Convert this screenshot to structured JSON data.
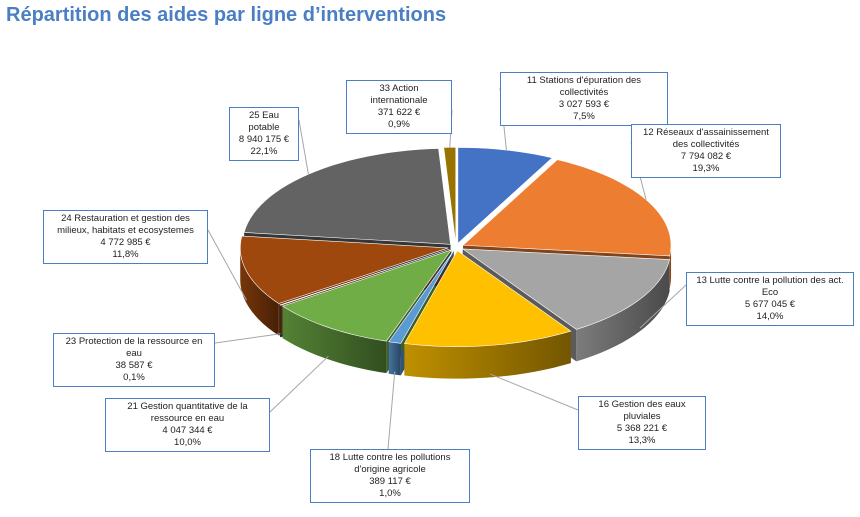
{
  "page": {
    "title": "Répartition des aides par ligne d’interventions"
  },
  "chart_data": {
    "type": "pie",
    "title": "Répartition des aides par ligne d’interventions",
    "slices": [
      {
        "name": "11 Stations d'épuration des collectivités",
        "value": 3027593,
        "value_label": "3 027 593 €",
        "percent": 7.5,
        "percent_label": "7,5%",
        "color": "#4472c4"
      },
      {
        "name": "12 Réseaux d'assainissement des collectivités",
        "value": 7794082,
        "value_label": "7 794 082 €",
        "percent": 19.3,
        "percent_label": "19,3%",
        "color": "#ed7d31"
      },
      {
        "name": "13 Lutte contre la pollution des act. Eco",
        "value": 5677045,
        "value_label": "5 677 045 €",
        "percent": 14.0,
        "percent_label": "14,0%",
        "color": "#a5a5a5"
      },
      {
        "name": "16 Gestion des eaux pluviales",
        "value": 5368221,
        "value_label": "5 368 221 €",
        "percent": 13.3,
        "percent_label": "13,3%",
        "color": "#ffc000"
      },
      {
        "name": "18 Lutte contre les pollutions d'origine agricole",
        "value": 389117,
        "value_label": "389 117 €",
        "percent": 1.0,
        "percent_label": "1,0%",
        "color": "#5b9bd5"
      },
      {
        "name": "21 Gestion quantitative de la ressource en eau",
        "value": 4047344,
        "value_label": "4 047 344 €",
        "percent": 10.0,
        "percent_label": "10,0%",
        "color": "#70ad47"
      },
      {
        "name": "23 Protection de la ressource en eau",
        "value": 38587,
        "value_label": "38 587 €",
        "percent": 0.1,
        "percent_label": "0,1%",
        "color": "#264478"
      },
      {
        "name": "24 Restauration et gestion des milieux, habitats et ecosystemes",
        "value": 4772985,
        "value_label": "4 772 985 €",
        "percent": 11.8,
        "percent_label": "11,8%",
        "color": "#9e480e"
      },
      {
        "name": "25 Eau potable",
        "value": 8940175,
        "value_label": "8 940 175 €",
        "percent": 22.1,
        "percent_label": "22,1%",
        "color": "#636363"
      },
      {
        "name": "33 Action internationale",
        "value": 371622,
        "value_label": "371 622 €",
        "percent": 0.9,
        "percent_label": "0,9%",
        "color": "#997300"
      }
    ],
    "legend": "none"
  }
}
